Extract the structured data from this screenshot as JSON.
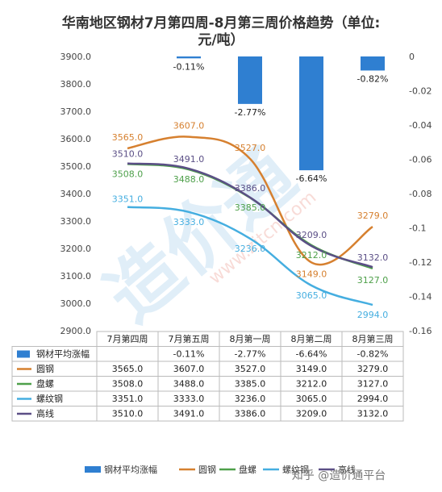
{
  "chart_data": {
    "type": "line",
    "title": "华南地区钢材7月第四周-8月第三周价格趋势（单位:元/吨）",
    "title_lines": [
      "华南地区钢材7月第四周-8月第三周价格趋势（单位:",
      "元/吨）"
    ],
    "categories": [
      "7月第四周",
      "7月第五周",
      "8月第一周",
      "8月第二周",
      "8月第三周"
    ],
    "left_axis": {
      "ylim": [
        2900,
        3900
      ],
      "step": 100,
      "tick_labels": [
        "2900.0",
        "3000.0",
        "3100.0",
        "3200.0",
        "3300.0",
        "3400.0",
        "3500.0",
        "3600.0",
        "3700.0",
        "3800.0",
        "3900.0"
      ]
    },
    "right_axis": {
      "ylim": [
        -0.16,
        0
      ],
      "step": 0.02,
      "tick_labels": [
        "-0.16",
        "-0.14",
        "-0.12",
        "-0.1",
        "-0.08",
        "-0.06",
        "-0.04",
        "-0.02",
        "0"
      ]
    },
    "bar_series": {
      "name": "钢材平均涨幅",
      "color": "#2f7fd1",
      "values": [
        null,
        -0.0011,
        -0.0277,
        -0.0664,
        -0.0082
      ],
      "labels": [
        "",
        "-0.11%",
        "-2.77%",
        "-6.64%",
        "-0.82%"
      ]
    },
    "series": [
      {
        "name": "圆钢",
        "color": "#d6802f",
        "values": [
          3565.0,
          3607.0,
          3527.0,
          3149.0,
          3279.0
        ],
        "labels": [
          "3565.0",
          "3607.0",
          "3527.0",
          "3149.0",
          "3279.0"
        ]
      },
      {
        "name": "盘螺",
        "color": "#4ea04a",
        "values": [
          3508.0,
          3488.0,
          3385.0,
          3212.0,
          3127.0
        ],
        "labels": [
          "3508.0",
          "3488.0",
          "3385.0",
          "3212.0",
          "3127.0"
        ]
      },
      {
        "name": "螺纹钢",
        "color": "#45aee0",
        "values": [
          3351.0,
          3333.0,
          3236.0,
          3065.0,
          2994.0
        ],
        "labels": [
          "3351.0",
          "3333.0",
          "3236.0",
          "3065.0",
          "2994.0"
        ]
      },
      {
        "name": "高线",
        "color": "#5b4f86",
        "values": [
          3510.0,
          3491.0,
          3386.0,
          3209.0,
          3132.0
        ],
        "labels": [
          "3510.0",
          "3491.0",
          "3386.0",
          "3209.0",
          "3132.0"
        ]
      }
    ],
    "table": {
      "header": [
        "",
        "7月第四周",
        "7月第五周",
        "8月第一周",
        "8月第二周",
        "8月第三周"
      ],
      "rows": [
        [
          "钢材平均涨幅",
          "",
          "-0.11%",
          "-2.77%",
          "-6.64%",
          "-0.82%"
        ],
        [
          "圆钢",
          "3565.0",
          "3607.0",
          "3527.0",
          "3149.0",
          "3279.0"
        ],
        [
          "盘螺",
          "3508.0",
          "3488.0",
          "3385.0",
          "3212.0",
          "3127.0"
        ],
        [
          "螺纹钢",
          "3351.0",
          "3333.0",
          "3236.0",
          "3065.0",
          "2994.0"
        ],
        [
          "高线",
          "3510.0",
          "3491.0",
          "3386.0",
          "3209.0",
          "3132.0"
        ]
      ]
    },
    "legend": {
      "placement": "bottom",
      "items": [
        "钢材平均涨幅",
        "圆钢",
        "盘螺",
        "螺纹钢",
        "高线"
      ]
    }
  },
  "watermark": {
    "main": "造价通",
    "url": "www.zjtcn.com",
    "attribution": "知乎 @造价通平台"
  }
}
